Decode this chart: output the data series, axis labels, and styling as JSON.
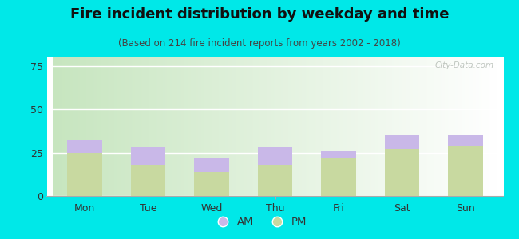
{
  "title": "Fire incident distribution by weekday and time",
  "subtitle": "(Based on 214 fire incident reports from years 2002 - 2018)",
  "categories": [
    "Mon",
    "Tue",
    "Wed",
    "Thu",
    "Fri",
    "Sat",
    "Sun"
  ],
  "pm_values": [
    25,
    18,
    14,
    18,
    22,
    27,
    29
  ],
  "am_values": [
    7,
    10,
    8,
    10,
    4,
    8,
    6
  ],
  "am_color": "#c9b8e8",
  "pm_color": "#c8d9a0",
  "background_color": "#00e8e8",
  "ylim": [
    0,
    80
  ],
  "yticks": [
    0,
    25,
    50,
    75
  ],
  "watermark": "City-Data.com",
  "bar_width": 0.55,
  "title_fontsize": 13,
  "subtitle_fontsize": 8.5,
  "tick_fontsize": 9
}
